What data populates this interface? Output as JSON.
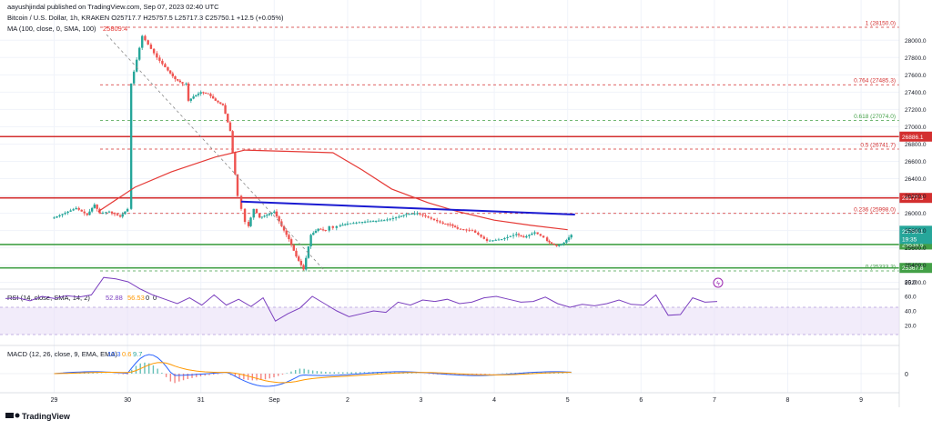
{
  "header": {
    "line1": "aayushjindal published on TradingView.com, Sep 07, 2023 02:40 UTC",
    "line2": "Bitcoin / U.S. Dollar, 1h, KRAKEN  O25717.7  H25757.5  L25717.3  C25750.1  +12.5 (+0.05%)",
    "line3_label": "MA (100, close, 0, SMA, 100)",
    "line3_value": "25809.4"
  },
  "footer": {
    "brand": "TradingView"
  },
  "colors": {
    "up": "#26a69a",
    "down": "#ef5350",
    "candle": "#ef5350",
    "ma": "#e53935",
    "red_line": "#d32f2f",
    "trend": "#1a1ad1",
    "green_line": "#43a047",
    "fib": "#26a69a",
    "rsi": "#7b3fbf",
    "macd": "#2962ff",
    "signal": "#ff9800",
    "text": "#131722"
  },
  "chart_data": [
    {
      "type": "line",
      "title": "Bitcoin / U.S. Dollar, 1h, KRAKEN",
      "x_ticks": [
        "29",
        "30",
        "31",
        "Sep",
        "2",
        "3",
        "4",
        "5",
        "6",
        "7",
        "8",
        "9"
      ],
      "y_ticks": [
        25200,
        25400,
        25600,
        25800,
        26000,
        26200,
        26400,
        26600,
        26800,
        27000,
        27200,
        27400,
        27600,
        27800,
        28000
      ],
      "ylim": [
        25100,
        28250
      ],
      "price_series": {
        "name": "BTC/USD 1h",
        "x_day": [
          0.0,
          0.3,
          0.45,
          0.55,
          0.62,
          0.75,
          0.9,
          1.0,
          1.05,
          1.2,
          1.4,
          1.55,
          1.65,
          1.75,
          1.8,
          1.83,
          1.9,
          2.0,
          2.1,
          2.2,
          2.3,
          2.4,
          2.5,
          2.55,
          2.6,
          2.65,
          2.68,
          2.72,
          2.8,
          2.9,
          3.0,
          3.1,
          3.2,
          3.3,
          3.4,
          3.5,
          3.6,
          3.7,
          3.75,
          3.8,
          3.85,
          3.9,
          4.0,
          4.2,
          4.5,
          4.7,
          4.8,
          4.95,
          5.1,
          5.3,
          5.4,
          5.5,
          5.7,
          5.9,
          6.1,
          6.3,
          6.4,
          6.55,
          6.67,
          6.72,
          6.78,
          6.85,
          6.95,
          7.05
        ],
        "close": [
          25950,
          26060,
          25980,
          26100,
          26000,
          26020,
          25960,
          26050,
          27500,
          28050,
          27800,
          27650,
          27550,
          27500,
          27500,
          27300,
          27350,
          27400,
          27380,
          27300,
          27250,
          26950,
          26200,
          26050,
          25900,
          25850,
          25950,
          26050,
          25950,
          25980,
          26020,
          25850,
          25700,
          25500,
          25350,
          25750,
          25820,
          25800,
          25850,
          25830,
          25850,
          25860,
          25880,
          25900,
          25920,
          25960,
          25990,
          26000,
          25950,
          25880,
          25870,
          25820,
          25800,
          25680,
          25700,
          25760,
          25720,
          25780,
          25720,
          25680,
          25650,
          25620,
          25660,
          25750
        ]
      },
      "series": [
        {
          "name": "MA (100, close, 0, SMA, 100)",
          "last": 25809.4
        }
      ],
      "horizontal_lines": [
        {
          "label": "1 (28150.0)",
          "value": 28150,
          "style": "dashed",
          "color": "red"
        },
        {
          "label": "0.764 (27485.3)",
          "value": 27485.3,
          "style": "dashed",
          "color": "red"
        },
        {
          "label": "0.618 (27074.0)",
          "value": 27074.0,
          "style": "dashed",
          "color": "green"
        },
        {
          "label": "26886.1",
          "value": 26886.1,
          "style": "solid",
          "color": "red"
        },
        {
          "label": "0.5 (26741.7)",
          "value": 26741.7,
          "style": "dashed",
          "color": "red"
        },
        {
          "label": "26177.3",
          "value": 26177.3,
          "style": "solid",
          "color": "red"
        },
        {
          "label": "0.236 (25998.0)",
          "value": 25998.0,
          "style": "dashed",
          "color": "red"
        },
        {
          "label": "25638.5",
          "value": 25638.5,
          "style": "solid",
          "color": "green"
        },
        {
          "label": "0 (25333.3)",
          "value": 25333.3,
          "style": "dashed",
          "color": "green"
        },
        {
          "label": "25367.8",
          "value": 25367.8,
          "style": "solid",
          "color": "green"
        }
      ],
      "trendline": {
        "from": [
          2.55,
          26135
        ],
        "to": [
          7.1,
          25985
        ]
      },
      "price_tag": {
        "price": "25750.1",
        "time": "19:35"
      }
    },
    {
      "type": "line",
      "title": "RSI (14, close, SMA, 14, 2)",
      "y_ticks": [
        20,
        40,
        60,
        80
      ],
      "ylim": [
        10,
        95
      ],
      "header_values": [
        "52.88",
        "56.53",
        "0",
        "0"
      ],
      "rsi_values": [
        57,
        58,
        54,
        60,
        57,
        61,
        59,
        62,
        86,
        84,
        80,
        70,
        62,
        56,
        50,
        58,
        48,
        62,
        48,
        56,
        46,
        58,
        26,
        36,
        44,
        60,
        50,
        40,
        32,
        36,
        40,
        38,
        52,
        48,
        55,
        53,
        56,
        50,
        52,
        58,
        60,
        56,
        52,
        53,
        59,
        50,
        45,
        49,
        47,
        50,
        55,
        49,
        48,
        62,
        34,
        35,
        58,
        52,
        53
      ]
    },
    {
      "type": "bar",
      "title": "MACD (12, 26, close, 9, EMA, EMA)",
      "y_ticks": [
        0.0
      ],
      "header_values": [
        "10.3",
        "0.6",
        "9.7"
      ]
    }
  ]
}
